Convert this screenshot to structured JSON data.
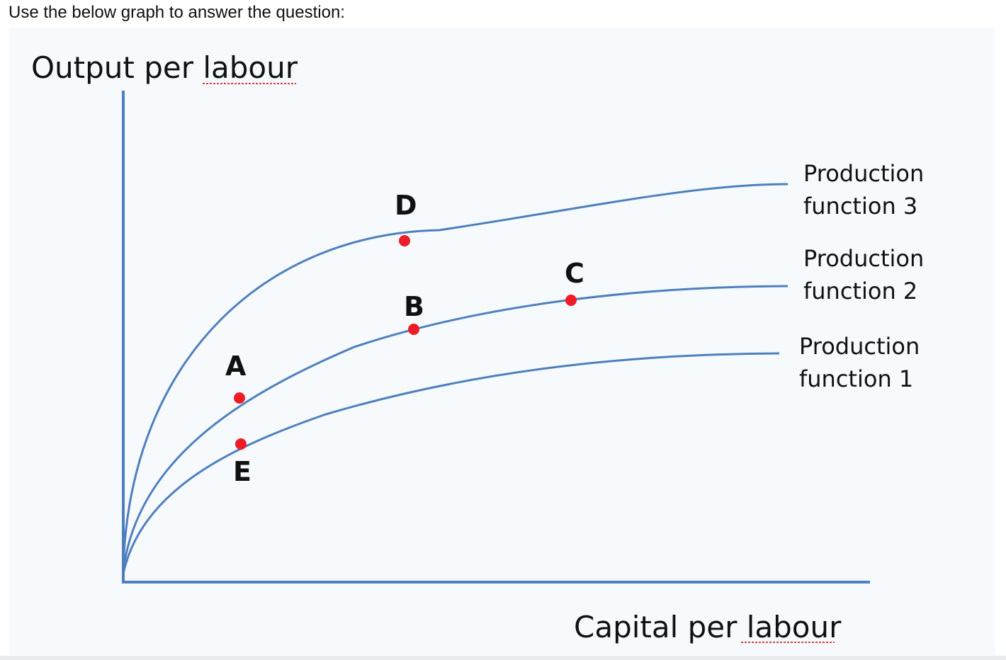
{
  "question_text": "Use the below graph to answer the question:",
  "diagram": {
    "y_axis_title": "Output per labour",
    "x_axis_title": "Capital per labour",
    "curves": [
      {
        "id": "pf1",
        "label_line1": "Production",
        "label_line2": "function 1"
      },
      {
        "id": "pf2",
        "label_line1": "Production",
        "label_line2": "function 2"
      },
      {
        "id": "pf3",
        "label_line1": "Production",
        "label_line2": "function 3"
      }
    ],
    "points": [
      {
        "label": "A",
        "curve": "pf2"
      },
      {
        "label": "B",
        "curve": "pf2"
      },
      {
        "label": "C",
        "curve": "pf2"
      },
      {
        "label": "D",
        "curve": "pf3"
      },
      {
        "label": "E",
        "curve": "pf1"
      }
    ],
    "colors": {
      "axis": "#4f7fbf",
      "curve": "#4f7fbf",
      "point": "#ee1c25",
      "background": "#f6fafd"
    }
  }
}
